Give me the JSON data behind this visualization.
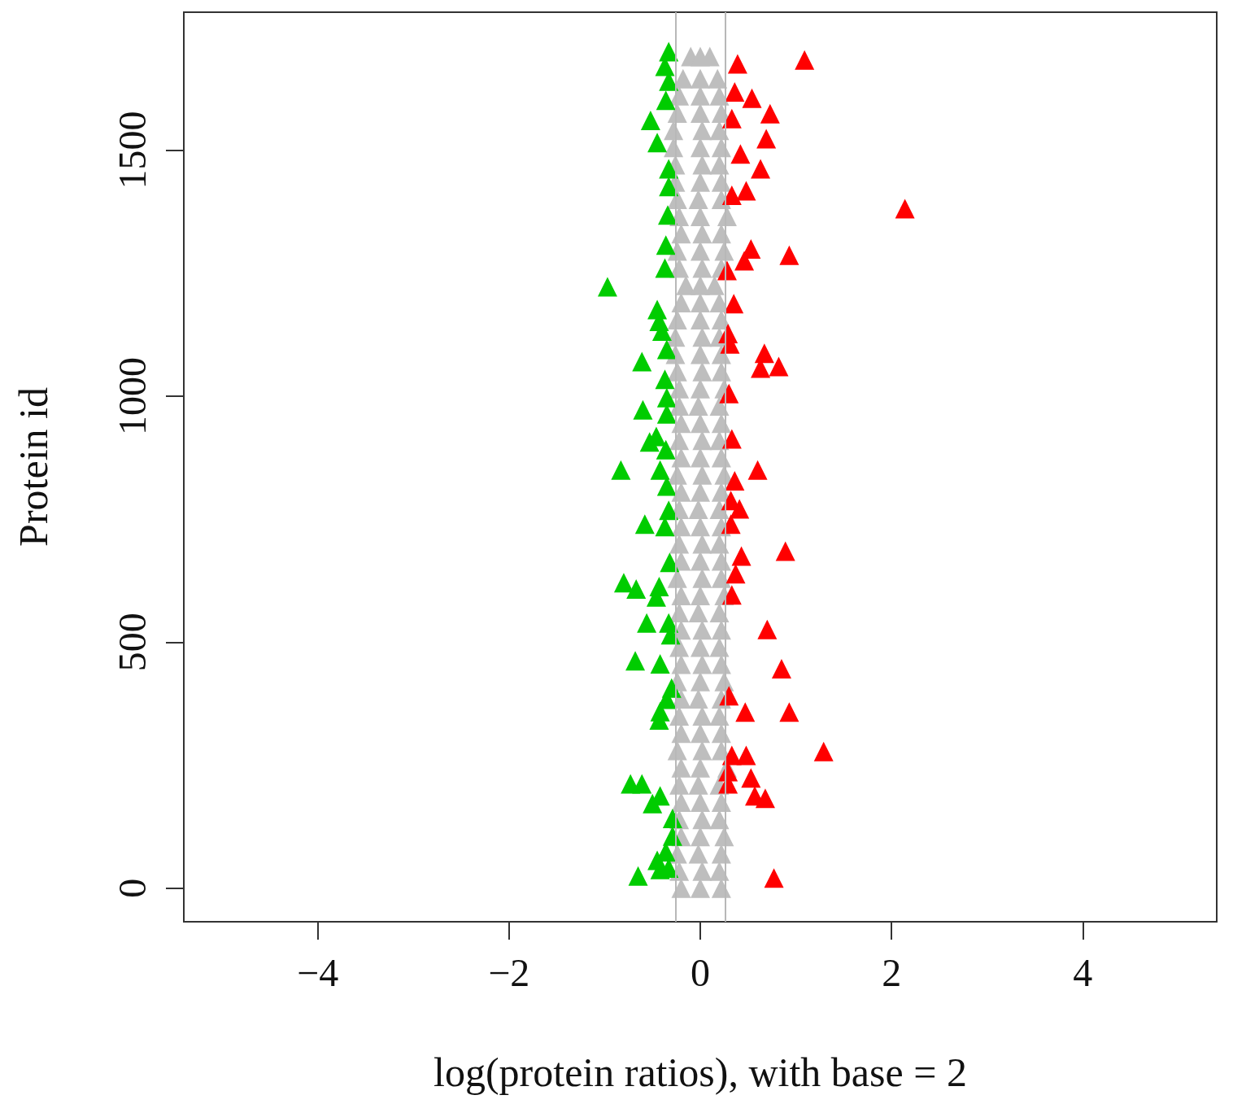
{
  "chart_data": {
    "type": "scatter",
    "xlabel": "log(protein ratios), with base = 2",
    "ylabel": "Protein id",
    "xlim": [
      -5.4,
      5.4
    ],
    "ylim": [
      -68,
      1780
    ],
    "xticks": [
      -4,
      -2,
      0,
      2,
      4
    ],
    "yticks": [
      0,
      500,
      1000,
      1500
    ],
    "grid": false,
    "marker": "triangle",
    "ref_lines": [
      {
        "axis": "x",
        "value": -0.26,
        "color": "#b8b8b8"
      },
      {
        "axis": "x",
        "value": 0.26,
        "color": "#b8b8b8"
      }
    ],
    "series": [
      {
        "color": "#bebebe",
        "x": [
          -0.2,
          0.0,
          0.22,
          -0.22,
          0.02,
          0.2,
          -0.24,
          -0.02,
          0.22,
          -0.2,
          0.0,
          0.25,
          -0.22,
          0.02,
          0.2,
          -0.2,
          0.0,
          0.22,
          -0.22,
          -0.02,
          0.2,
          -0.2,
          0.0,
          0.28,
          -0.24,
          0.02,
          0.22,
          -0.2,
          0.0,
          0.22,
          -0.22,
          0.02,
          0.2,
          -0.2,
          -0.02,
          0.22,
          -0.24,
          0.0,
          0.25,
          -0.2,
          0.02,
          0.22,
          -0.22,
          0.0,
          0.2,
          -0.2,
          0.02,
          0.22,
          -0.22,
          -0.02,
          0.2,
          -0.2,
          0.0,
          0.25,
          -0.24,
          0.02,
          0.22,
          -0.2,
          0.0,
          0.22,
          -0.22,
          0.02,
          0.2,
          -0.2,
          0.0,
          0.22,
          -0.22,
          -0.02,
          0.2,
          -0.2,
          0.0,
          0.22,
          -0.24,
          0.02,
          0.25,
          -0.2,
          0.0,
          0.22,
          -0.22,
          0.02,
          0.2,
          -0.2,
          0.0,
          0.22,
          -0.22,
          -0.02,
          0.2,
          -0.22,
          0.0,
          0.25,
          -0.24,
          0.02,
          0.22,
          -0.26,
          0.0,
          0.22,
          -0.26,
          0.02,
          0.2,
          -0.24,
          0.0,
          0.22,
          -0.2,
          0.0,
          0.2,
          -0.15,
          0.0,
          0.15
        ],
        "values": [
          0,
          0,
          0,
          35,
          35,
          35,
          70,
          70,
          70,
          105,
          105,
          105,
          140,
          140,
          140,
          175,
          175,
          175,
          210,
          210,
          210,
          245,
          245,
          245,
          280,
          280,
          280,
          315,
          315,
          315,
          350,
          350,
          350,
          385,
          385,
          385,
          420,
          420,
          420,
          455,
          455,
          455,
          490,
          490,
          490,
          525,
          525,
          525,
          560,
          560,
          560,
          595,
          595,
          595,
          630,
          630,
          630,
          665,
          665,
          665,
          700,
          700,
          700,
          735,
          735,
          735,
          770,
          770,
          770,
          805,
          805,
          805,
          840,
          840,
          840,
          875,
          875,
          875,
          910,
          910,
          910,
          945,
          945,
          945,
          980,
          980,
          980,
          1015,
          1015,
          1015,
          1050,
          1050,
          1050,
          1085,
          1085,
          1085,
          1120,
          1120,
          1120,
          1155,
          1155,
          1155,
          1190,
          1190,
          1190,
          1225,
          1225,
          1225
        ]
      },
      {
        "color": "#bebebe",
        "x": [
          -0.22,
          0.02,
          0.22,
          -0.24,
          0.0,
          0.25,
          -0.2,
          0.02,
          0.22,
          -0.22,
          0.0,
          0.28,
          -0.24,
          -0.02,
          0.22,
          -0.26,
          0.0,
          0.22,
          -0.26,
          0.02,
          0.2,
          -0.28,
          0.0,
          0.22,
          -0.28,
          0.02,
          0.2,
          -0.24,
          0.0,
          0.22,
          -0.22,
          0.0,
          0.2,
          -0.18,
          0.0,
          0.18,
          -0.1,
          0.0,
          0.1
        ],
        "values": [
          1260,
          1260,
          1260,
          1295,
          1295,
          1295,
          1330,
          1330,
          1330,
          1365,
          1365,
          1365,
          1400,
          1400,
          1400,
          1435,
          1435,
          1435,
          1470,
          1470,
          1470,
          1505,
          1505,
          1505,
          1540,
          1540,
          1540,
          1575,
          1575,
          1575,
          1610,
          1610,
          1610,
          1645,
          1645,
          1645,
          1690,
          1690,
          1690
        ]
      },
      {
        "color": "#00cc00",
        "x": [
          -0.33,
          -0.37,
          -0.33,
          -0.36,
          -0.52,
          -0.45,
          -0.33,
          -0.33,
          -0.34,
          -0.36,
          -0.37,
          -0.97,
          -0.45,
          -0.43,
          -0.4,
          -0.35,
          -0.61,
          -0.37,
          -0.6,
          -0.35,
          -0.35,
          -0.46,
          -0.53,
          -0.36,
          -0.83,
          -0.42,
          -0.35,
          -0.33,
          -0.58,
          -0.37,
          -0.32,
          -0.8,
          -0.67,
          -0.43,
          -0.46,
          -0.56,
          -0.33,
          -0.31,
          -0.68,
          -0.42,
          -0.3,
          -0.35,
          -0.42,
          -0.43,
          -0.73,
          -0.61,
          -0.42,
          -0.5,
          -0.29,
          -0.29,
          -0.36,
          -0.45,
          -0.42,
          -0.65,
          -0.33
        ],
        "values": [
          1700,
          1670,
          1640,
          1601,
          1560,
          1515,
          1462,
          1426,
          1368,
          1307,
          1260,
          1222,
          1176,
          1152,
          1132,
          1095,
          1070,
          1034,
          972,
          997,
          964,
          918,
          907,
          891,
          850,
          850,
          817,
          768,
          740,
          735,
          662,
          621,
          608,
          613,
          592,
          539,
          539,
          515,
          462,
          456,
          407,
          384,
          359,
          342,
          212,
          212,
          188,
          172,
          142,
          106,
          74,
          57,
          38,
          25,
          41
        ]
      },
      {
        "color": "#ff0000",
        "x": [
          0.39,
          1.09,
          0.36,
          0.54,
          0.73,
          0.33,
          0.69,
          0.42,
          0.63,
          0.48,
          0.33,
          2.14,
          0.53,
          0.93,
          0.46,
          0.28,
          0.35,
          0.29,
          0.31,
          0.67,
          0.63,
          0.82,
          0.3,
          0.33,
          0.6,
          0.36,
          0.32,
          0.41,
          0.32,
          0.43,
          0.89,
          0.37,
          0.33,
          0.7,
          0.85,
          0.3,
          0.47,
          0.93,
          1.29,
          0.33,
          0.48,
          0.29,
          0.53,
          0.29,
          0.57,
          0.68,
          0.77
        ],
        "values": [
          1675,
          1683,
          1618,
          1605,
          1574,
          1564,
          1523,
          1492,
          1462,
          1417,
          1408,
          1381,
          1299,
          1286,
          1275,
          1255,
          1188,
          1127,
          1106,
          1087,
          1057,
          1060,
          1005,
          913,
          850,
          828,
          788,
          771,
          740,
          675,
          685,
          639,
          596,
          526,
          446,
          391,
          358,
          358,
          278,
          270,
          270,
          237,
          224,
          212,
          188,
          183,
          21
        ]
      }
    ]
  }
}
